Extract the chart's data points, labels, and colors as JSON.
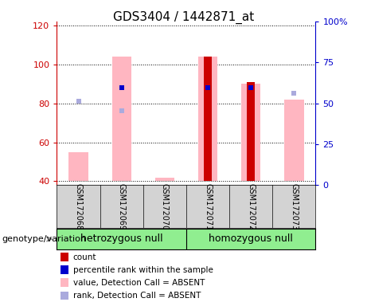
{
  "title": "GDS3404 / 1442871_at",
  "samples": [
    "GSM172068",
    "GSM172069",
    "GSM172070",
    "GSM172071",
    "GSM172072",
    "GSM172073"
  ],
  "groups": [
    "hetrozygous null",
    "homozygous null"
  ],
  "ylim_left": [
    38,
    122
  ],
  "ylim_right": [
    0,
    100
  ],
  "yticks_left": [
    40,
    60,
    80,
    100,
    120
  ],
  "yticks_right": [
    0,
    25,
    50,
    75,
    100
  ],
  "absent_value_heights": [
    55,
    104,
    42,
    104,
    90,
    82
  ],
  "absent_value_color": "#FFB6C1",
  "absent_rank_y": [
    81,
    76,
    null,
    null,
    null,
    85
  ],
  "absent_rank_color": "#AAAADD",
  "count_heights": [
    null,
    null,
    null,
    104,
    91,
    null
  ],
  "count_color": "#CC0000",
  "percentile_y": [
    null,
    88,
    null,
    88,
    88,
    null
  ],
  "percentile_color": "#0000CC",
  "bar_bottom": 40,
  "absent_bar_width": 0.45,
  "count_bar_width": 0.18,
  "legend_items": [
    {
      "label": "count",
      "color": "#CC0000"
    },
    {
      "label": "percentile rank within the sample",
      "color": "#0000CC"
    },
    {
      "label": "value, Detection Call = ABSENT",
      "color": "#FFB6C1"
    },
    {
      "label": "rank, Detection Call = ABSENT",
      "color": "#AAAADD"
    }
  ],
  "genotype_label": "genotype/variation",
  "left_axis_color": "#CC0000",
  "right_axis_color": "#0000CC",
  "title_fontsize": 11,
  "tick_label_fontsize": 8,
  "sample_label_fontsize": 7,
  "group_label_fontsize": 9
}
